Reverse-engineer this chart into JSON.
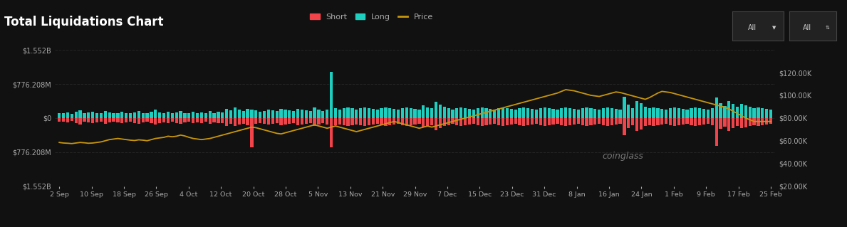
{
  "title": "Total Liquidations Chart",
  "background_color": "#111111",
  "plot_bg_color": "#111111",
  "text_color": "#aaaaaa",
  "grid_color": "#2a2a2a",
  "long_color": "#1ecfc0",
  "short_color": "#f0434a",
  "price_color": "#c8960c",
  "left_ylim": [
    -1552208000,
    1552208000
  ],
  "right_ylim": [
    20000,
    140000
  ],
  "left_yticks": [
    -1552208000,
    -776208000,
    0,
    776208000,
    1552208000
  ],
  "left_yticklabels": [
    "$1.552B",
    "$776.208M",
    "$0",
    "$776.208M",
    "$1.552B"
  ],
  "right_yticks": [
    20000,
    40000,
    60000,
    80000,
    100000,
    120000
  ],
  "right_yticklabels": [
    "$20.00K",
    "$40.00K",
    "$60.00K",
    "$80.00K",
    "$100.00K",
    "$120.00K"
  ],
  "xtick_labels": [
    "2 Sep",
    "10 Sep",
    "18 Sep",
    "26 Sep",
    "4 Oct",
    "12 Oct",
    "20 Oct",
    "28 Oct",
    "5 Nov",
    "13 Nov",
    "21 Nov",
    "29 Nov",
    "7 Dec",
    "15 Dec",
    "23 Dec",
    "31 Dec",
    "8 Jan",
    "16 Jan",
    "24 Jan",
    "1 Feb",
    "9 Feb",
    "17 Feb",
    "25 Feb"
  ],
  "legend_items": [
    "Short",
    "Long",
    "Price"
  ],
  "legend_colors": [
    "#f0434a",
    "#1ecfc0",
    "#c8960c"
  ],
  "source_text": "coinglass",
  "long_bars": [
    80,
    70,
    90,
    60,
    100,
    120,
    75,
    85,
    95,
    80,
    70,
    110,
    85,
    70,
    80,
    100,
    80,
    70,
    90,
    110,
    80,
    70,
    95,
    130,
    90,
    80,
    100,
    70,
    90,
    110,
    80,
    70,
    100,
    80,
    90,
    70,
    110,
    80,
    100,
    90,
    140,
    115,
    160,
    130,
    110,
    145,
    130,
    115,
    95,
    110,
    130,
    115,
    110,
    145,
    130,
    115,
    110,
    145,
    130,
    115,
    110,
    165,
    130,
    110,
    130,
    700,
    150,
    130,
    150,
    165,
    150,
    130,
    150,
    165,
    150,
    140,
    130,
    150,
    165,
    150,
    140,
    130,
    150,
    165,
    150,
    140,
    130,
    190,
    165,
    150,
    250,
    200,
    170,
    150,
    130,
    150,
    165,
    150,
    140,
    130,
    150,
    165,
    150,
    140,
    130,
    150,
    165,
    150,
    140,
    130,
    150,
    165,
    150,
    140,
    130,
    150,
    165,
    150,
    140,
    130,
    150,
    165,
    150,
    140,
    130,
    150,
    165,
    150,
    140,
    130,
    150,
    165,
    150,
    140,
    130,
    330,
    200,
    150,
    260,
    225,
    170,
    150,
    165,
    150,
    140,
    130,
    150,
    165,
    150,
    140,
    130,
    150,
    165,
    150,
    140,
    130,
    155,
    310,
    225,
    180,
    260,
    215,
    170,
    215,
    190,
    170,
    150,
    165,
    150,
    140,
    130
  ],
  "short_bars": [
    60,
    55,
    70,
    50,
    80,
    95,
    60,
    68,
    78,
    65,
    55,
    85,
    68,
    55,
    65,
    80,
    62,
    55,
    72,
    88,
    65,
    55,
    78,
    100,
    72,
    62,
    80,
    57,
    72,
    88,
    65,
    55,
    80,
    65,
    72,
    55,
    88,
    65,
    80,
    72,
    120,
    90,
    120,
    100,
    88,
    110,
    450,
    90,
    78,
    90,
    100,
    90,
    78,
    110,
    100,
    90,
    78,
    110,
    100,
    90,
    78,
    120,
    100,
    78,
    100,
    450,
    108,
    98,
    108,
    120,
    108,
    98,
    108,
    120,
    108,
    98,
    88,
    108,
    120,
    108,
    98,
    88,
    108,
    120,
    108,
    98,
    88,
    145,
    120,
    108,
    190,
    155,
    120,
    108,
    88,
    108,
    120,
    108,
    98,
    88,
    108,
    120,
    108,
    98,
    88,
    108,
    120,
    108,
    98,
    88,
    108,
    120,
    108,
    98,
    88,
    108,
    120,
    108,
    98,
    88,
    108,
    120,
    108,
    98,
    88,
    108,
    120,
    108,
    98,
    88,
    108,
    120,
    108,
    98,
    88,
    265,
    155,
    108,
    200,
    170,
    120,
    108,
    120,
    108,
    98,
    88,
    108,
    120,
    108,
    98,
    88,
    108,
    120,
    108,
    98,
    88,
    108,
    420,
    168,
    132,
    192,
    156,
    120,
    156,
    144,
    120,
    108,
    120,
    108,
    98,
    88
  ],
  "price_line": [
    58500,
    58000,
    57800,
    57500,
    58000,
    58500,
    58200,
    57800,
    58000,
    58500,
    59000,
    60000,
    61000,
    61500,
    62000,
    61500,
    61000,
    60500,
    60200,
    60800,
    60500,
    60000,
    61000,
    62000,
    62500,
    63000,
    64000,
    63500,
    64000,
    65000,
    64200,
    63000,
    62000,
    61500,
    61000,
    61500,
    62000,
    63000,
    64000,
    65000,
    66000,
    67000,
    68000,
    69000,
    70000,
    71000,
    72000,
    71500,
    70500,
    69500,
    68500,
    67500,
    66500,
    66000,
    67000,
    68000,
    69000,
    70000,
    71000,
    72000,
    73000,
    74000,
    73000,
    72000,
    71000,
    72000,
    73000,
    72000,
    71000,
    70000,
    69000,
    68000,
    69000,
    70000,
    71000,
    72000,
    73000,
    74000,
    75000,
    76000,
    77000,
    76000,
    75000,
    74000,
    73000,
    72000,
    71000,
    72000,
    73000,
    72000,
    73000,
    74000,
    75000,
    76000,
    77000,
    78000,
    79000,
    80000,
    81000,
    82000,
    83000,
    84000,
    85000,
    86000,
    87000,
    88000,
    89000,
    90000,
    91000,
    92000,
    93000,
    94000,
    95000,
    96000,
    97000,
    98000,
    99000,
    100000,
    101000,
    102000,
    103500,
    105000,
    104500,
    104000,
    103000,
    102000,
    101000,
    100000,
    99500,
    99000,
    100000,
    101000,
    102000,
    103000,
    102500,
    101500,
    100500,
    99500,
    98500,
    97500,
    96500,
    98000,
    100000,
    102000,
    103500,
    103000,
    102500,
    101500,
    100500,
    99500,
    98500,
    97500,
    96500,
    95500,
    94500,
    93500,
    92500,
    91500,
    90500,
    89500,
    88000,
    86000,
    84000,
    82000,
    80000,
    78500,
    77000
  ]
}
